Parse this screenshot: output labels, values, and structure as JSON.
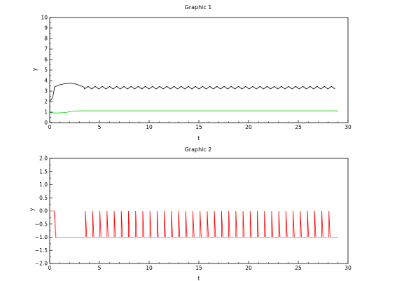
{
  "chart_data": [
    {
      "type": "line",
      "title": "Graphic 1",
      "xlabel": "t",
      "ylabel": "y",
      "xlim": [
        0,
        30
      ],
      "ylim": [
        0,
        10
      ],
      "xticks": [
        "0",
        "5",
        "10",
        "15",
        "20",
        "25",
        "30"
      ],
      "yticks": [
        "0",
        "1",
        "2",
        "3",
        "4",
        "5",
        "6",
        "7",
        "8",
        "9",
        "10"
      ],
      "grid": false,
      "series": [
        {
          "color": "#000000",
          "points": [
            [
              0,
              2.0
            ],
            [
              0.3,
              2.4
            ],
            [
              0.5,
              3.4
            ],
            [
              1.0,
              3.6
            ],
            [
              1.5,
              3.7
            ],
            [
              2.0,
              3.75
            ],
            [
              2.5,
              3.7
            ],
            [
              3.0,
              3.55
            ],
            [
              3.4,
              3.4
            ],
            [
              3.5,
              3.3
            ]
          ],
          "periodic_tail": {
            "x_start": 3.5,
            "x_end": 29.0,
            "period": 0.72,
            "low": 3.2,
            "high": 3.45
          }
        },
        {
          "color": "#00cc00",
          "points": [
            [
              0,
              0.95
            ],
            [
              0.5,
              0.92
            ],
            [
              1.0,
              0.93
            ],
            [
              1.5,
              0.96
            ],
            [
              1.8,
              1.0
            ],
            [
              2.0,
              1.05
            ],
            [
              2.5,
              1.1
            ],
            [
              3.0,
              1.12
            ],
            [
              29.0,
              1.12
            ]
          ]
        }
      ]
    },
    {
      "type": "line",
      "title": "Graphic 2",
      "xlabel": "t",
      "ylabel": "y",
      "xlim": [
        0,
        30
      ],
      "ylim": [
        -2.0,
        2.0
      ],
      "xticks": [
        "0",
        "5",
        "10",
        "15",
        "20",
        "25",
        "30"
      ],
      "yticks": [
        "−2.0",
        "−1.5",
        "−1.0",
        "−0.5",
        "0.0",
        "0.5",
        "1.0",
        "1.5",
        "2.0"
      ],
      "grid": false,
      "series": [
        {
          "color": "#ff0000",
          "points": [
            [
              0,
              0.0
            ],
            [
              0.45,
              0.0
            ],
            [
              0.6,
              -1.0
            ],
            [
              3.5,
              -1.0
            ]
          ],
          "pulse_train": {
            "x_start": 3.6,
            "x_end": 28.6,
            "period": 0.72,
            "base": -1.0,
            "peak": 0.0
          }
        },
        {
          "color": "#ff9999",
          "points": [
            [
              0,
              0.0
            ],
            [
              0.5,
              0.0
            ],
            [
              0.65,
              -1.0
            ],
            [
              29.0,
              -1.0
            ]
          ]
        }
      ]
    }
  ]
}
